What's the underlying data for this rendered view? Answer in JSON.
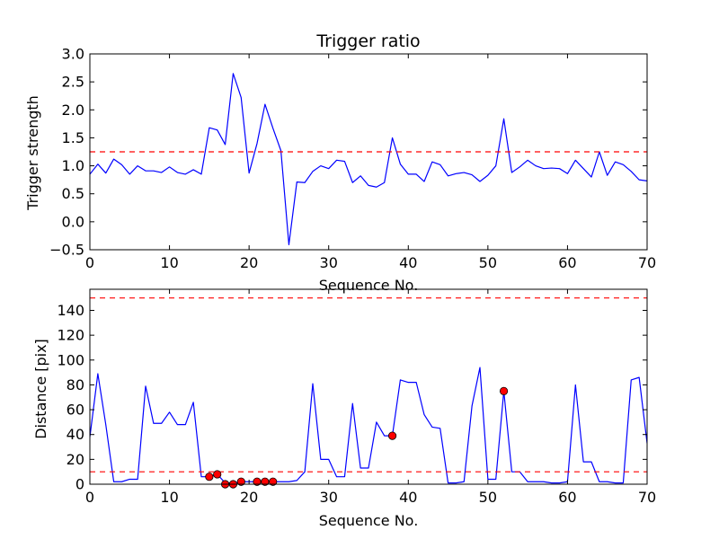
{
  "chart_data": [
    {
      "type": "line",
      "title": "Trigger ratio",
      "xlabel": "Sequence No.",
      "ylabel": "Trigger strength",
      "xlim": [
        0,
        70
      ],
      "ylim": [
        -0.5,
        3.0
      ],
      "xticks": [
        0,
        10,
        20,
        30,
        40,
        50,
        60,
        70
      ],
      "yticks": [
        -0.5,
        0.0,
        0.5,
        1.0,
        1.5,
        2.0,
        2.5,
        3.0
      ],
      "xtick_labels": [
        "0",
        "10",
        "20",
        "30",
        "40",
        "50",
        "60",
        "70"
      ],
      "ytick_labels": [
        "−0.5",
        "0.0",
        "0.5",
        "1.0",
        "1.5",
        "2.0",
        "2.5",
        "3.0"
      ],
      "grid": false,
      "series": [
        {
          "color": "#0000ff",
          "x": [
            0,
            1,
            2,
            3,
            4,
            5,
            6,
            7,
            8,
            9,
            10,
            11,
            12,
            13,
            14,
            15,
            16,
            17,
            18,
            19,
            20,
            21,
            22,
            23,
            24,
            25,
            26,
            27,
            28,
            29,
            30,
            31,
            32,
            33,
            34,
            35,
            36,
            37,
            38,
            39,
            40,
            41,
            42,
            43,
            44,
            45,
            46,
            47,
            48,
            49,
            50,
            51,
            52,
            53,
            54,
            55,
            56,
            57,
            58,
            59,
            60,
            61,
            62,
            63,
            64,
            65,
            66,
            67,
            68,
            69,
            70
          ],
          "y": [
            0.85,
            1.03,
            0.87,
            1.12,
            1.02,
            0.85,
            1.0,
            0.91,
            0.91,
            0.88,
            0.98,
            0.88,
            0.85,
            0.93,
            0.85,
            1.68,
            1.64,
            1.38,
            2.65,
            2.22,
            0.87,
            1.4,
            2.1,
            1.67,
            1.27,
            -0.41,
            0.71,
            0.7,
            0.9,
            1.0,
            0.95,
            1.1,
            1.08,
            0.7,
            0.82,
            0.65,
            0.62,
            0.7,
            1.5,
            1.03,
            0.85,
            0.85,
            0.72,
            1.07,
            1.02,
            0.82,
            0.86,
            0.88,
            0.84,
            0.72,
            0.83,
            1.0,
            1.84,
            0.88,
            0.98,
            1.1,
            1.0,
            0.95,
            0.96,
            0.95,
            0.86,
            1.1,
            0.95,
            0.8,
            1.25,
            0.83,
            1.07,
            1.02,
            0.9,
            0.75,
            0.73
          ]
        }
      ],
      "hlines": [
        {
          "y": 1.25,
          "color": "#ff0000",
          "style": "dashed"
        }
      ],
      "markers": []
    },
    {
      "type": "line",
      "title": "",
      "xlabel": "Sequence No.",
      "ylabel": "Distance [pix]",
      "xlim": [
        0,
        70
      ],
      "ylim": [
        0,
        157
      ],
      "xticks": [
        0,
        10,
        20,
        30,
        40,
        50,
        60,
        70
      ],
      "yticks": [
        0,
        20,
        40,
        60,
        80,
        100,
        120,
        140
      ],
      "xtick_labels": [
        "0",
        "10",
        "20",
        "30",
        "40",
        "50",
        "60",
        "70"
      ],
      "ytick_labels": [
        "0",
        "20",
        "40",
        "60",
        "80",
        "100",
        "120",
        "140"
      ],
      "grid": false,
      "series": [
        {
          "color": "#0000ff",
          "x": [
            0,
            1,
            2,
            3,
            4,
            5,
            6,
            7,
            8,
            9,
            10,
            11,
            12,
            13,
            14,
            15,
            16,
            17,
            18,
            19,
            20,
            21,
            22,
            23,
            24,
            25,
            26,
            27,
            28,
            29,
            30,
            31,
            32,
            33,
            34,
            35,
            36,
            37,
            38,
            39,
            40,
            41,
            42,
            43,
            44,
            45,
            46,
            47,
            48,
            49,
            50,
            51,
            52,
            53,
            54,
            55,
            56,
            57,
            58,
            59,
            60,
            61,
            62,
            63,
            64,
            65,
            66,
            67,
            68,
            69,
            70
          ],
          "y": [
            38,
            89,
            48,
            2,
            2,
            4,
            4,
            79,
            49,
            49,
            58,
            48,
            48,
            66,
            6,
            6,
            8,
            1,
            1,
            2,
            2,
            2,
            2,
            2,
            2,
            2,
            3,
            10,
            81,
            20,
            20,
            6,
            6,
            65,
            13,
            13,
            50,
            39,
            39,
            84,
            82,
            82,
            56,
            46,
            45,
            1,
            1,
            2,
            63,
            94,
            4,
            4,
            75,
            10,
            10,
            2,
            2,
            2,
            1,
            1,
            2,
            80,
            18,
            18,
            2,
            2,
            1,
            1,
            84,
            86,
            33
          ]
        }
      ],
      "hlines": [
        {
          "y": 150,
          "color": "#ff0000",
          "style": "dashed"
        },
        {
          "y": 10,
          "color": "#ff0000",
          "style": "dashed"
        }
      ],
      "markers": {
        "color": "#ff0000",
        "x": [
          15,
          16,
          17,
          18,
          19,
          21,
          22,
          23,
          38,
          52
        ],
        "y": [
          6,
          8,
          0,
          0,
          2,
          2,
          2,
          2,
          39,
          75
        ]
      }
    }
  ]
}
